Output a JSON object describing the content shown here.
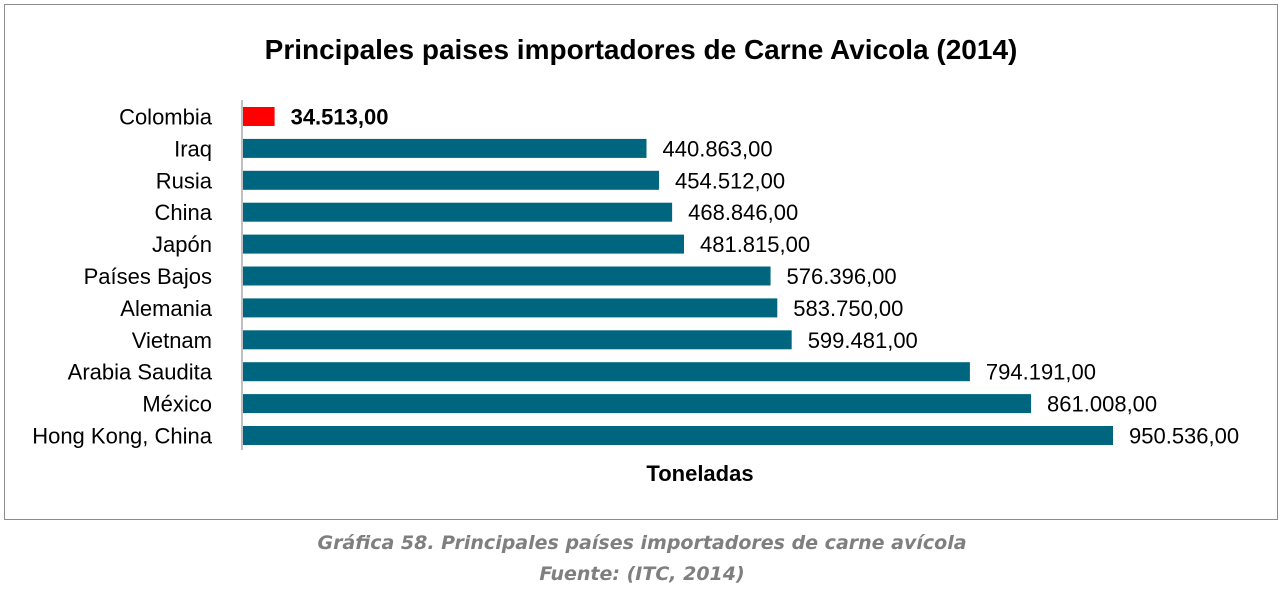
{
  "chart_data": {
    "type": "bar",
    "orientation": "horizontal",
    "title": "Principales paises importadores de Carne Avicola (2014)",
    "xlabel": "Toneladas",
    "ylabel": "",
    "xlim": [
      0,
      1000000
    ],
    "grid": false,
    "legend": "none",
    "categories": [
      "Colombia",
      "Iraq",
      "Rusia",
      "China",
      "Japón",
      "Países Bajos",
      "Alemania",
      "Vietnam",
      "Arabia Saudita",
      "México",
      "Hong Kong, China"
    ],
    "values": [
      34513,
      440863,
      454512,
      468846,
      481815,
      576396,
      583750,
      599481,
      794191,
      861008,
      950536
    ],
    "value_labels": [
      "34.513,00",
      "440.863,00",
      "454.512,00",
      "468.846,00",
      "481.815,00",
      "576.396,00",
      "583.750,00",
      "599.481,00",
      "794.191,00",
      "861.008,00",
      "950.536,00"
    ],
    "highlight_category": "Colombia",
    "colors": {
      "bar": "#00667f",
      "highlight": "#ff0000",
      "axis": "#7f7f7f",
      "text": "#000000"
    }
  },
  "caption": {
    "line1": "Gráfica 58. Principales países importadores de carne avícola",
    "line2": "Fuente: (ITC, 2014)"
  }
}
